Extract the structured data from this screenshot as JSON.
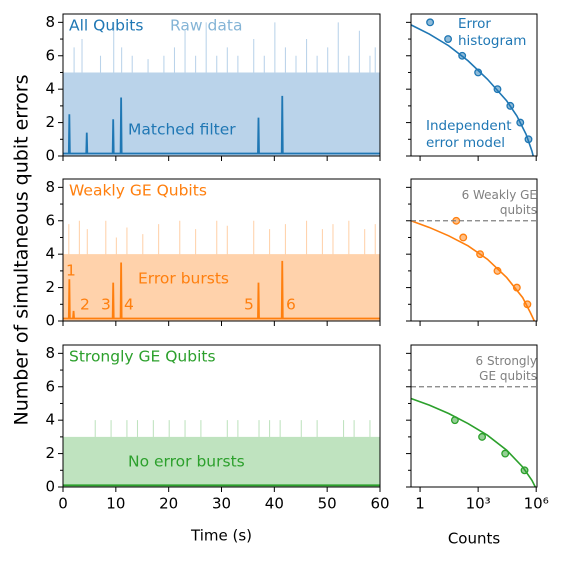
{
  "figure": {
    "ylabel": "Number of simultaneous qubit errors"
  },
  "chart_data": [
    {
      "type": "line",
      "title": "All Qubits",
      "xlim": [
        0,
        60
      ],
      "xticks": [
        0,
        10,
        20,
        30,
        40,
        50,
        60
      ],
      "ylim": [
        0,
        8.5
      ],
      "yticks": [
        0,
        2,
        4,
        6,
        8
      ],
      "yminor": [
        1,
        3,
        5,
        7
      ],
      "series": [
        {
          "name": "Raw data",
          "style": "step-area",
          "color": "#bad3ea",
          "x": [
            0,
            2,
            2.2,
            3.5,
            3.7,
            7,
            7.2,
            9.5,
            9.7,
            11,
            11.2,
            13,
            13.2,
            16,
            16.2,
            19,
            19.2,
            21,
            21.2,
            23,
            23.2,
            25,
            25.2,
            27,
            27.2,
            29,
            29.2,
            31,
            31.2,
            33,
            33.2,
            36,
            36.2,
            38,
            38.2,
            40,
            40.2,
            42,
            42.2,
            44,
            44.2,
            46,
            46.2,
            48,
            48.2,
            50,
            50.2,
            52,
            52.2,
            54,
            54.2,
            56,
            56.2,
            58,
            58.2,
            59,
            59.2,
            60
          ],
          "values": [
            5,
            6.5,
            5,
            7,
            5,
            6,
            5,
            8,
            5,
            6.5,
            5,
            6,
            5,
            5.8,
            5,
            6,
            5,
            6.5,
            5,
            7.5,
            5,
            6,
            5,
            8,
            5,
            6,
            5,
            6.5,
            5,
            6,
            5,
            7,
            5,
            6,
            5,
            8,
            5,
            6.5,
            5,
            6,
            5,
            7,
            5,
            6,
            5,
            6.5,
            5,
            8,
            5,
            6,
            5,
            7.5,
            5,
            6,
            5,
            6.5,
            5,
            5
          ]
        },
        {
          "name": "Matched filter",
          "style": "line",
          "color": "#1f77b4",
          "x": [
            0,
            1.1,
            1.2,
            1.3,
            4.4,
            4.5,
            4.6,
            9.4,
            9.5,
            9.6,
            10.9,
            11,
            11.1,
            36.9,
            37,
            37.1,
            41.4,
            41.5,
            41.6,
            60
          ],
          "values": [
            0.15,
            0.15,
            2.5,
            0.15,
            0.15,
            1.4,
            0.15,
            0.15,
            2.2,
            0.15,
            0.15,
            3.5,
            0.15,
            0.15,
            2.3,
            0.15,
            0.15,
            3.6,
            0.15,
            0.15
          ]
        }
      ],
      "annotations": []
    },
    {
      "type": "scatter",
      "xscale": "log",
      "xlim": [
        0.34,
        1100000
      ],
      "xticks": [
        1,
        {
          "value": 1000,
          "label": "10³"
        },
        {
          "value": 1000000,
          "label": "10⁶"
        }
      ],
      "ylim": [
        0,
        8.5
      ],
      "yticks": [
        0,
        2,
        4,
        6,
        8
      ],
      "yminor": [
        1,
        3,
        5,
        7
      ],
      "series": [
        {
          "name": "Error histogram",
          "style": "points",
          "color": "#1f77b4",
          "x": [
            3.3,
            28,
            150,
            1000,
            10000,
            46000,
            150000,
            400000
          ],
          "values": [
            8,
            7,
            6,
            5,
            4,
            3,
            2,
            1
          ]
        },
        {
          "name": "Independent error model",
          "style": "line",
          "color": "#1f77b4",
          "x": [
            0.34,
            3,
            30,
            300,
            3000,
            30000,
            100000,
            300000,
            600000,
            700000
          ],
          "values": [
            7.85,
            7.3,
            6.6,
            5.7,
            4.6,
            3.3,
            2.4,
            1.3,
            0.3,
            0
          ]
        }
      ]
    },
    {
      "type": "line",
      "title": "Weakly GE Qubits",
      "xlim": [
        0,
        60
      ],
      "xticks": [
        0,
        10,
        20,
        30,
        40,
        50,
        60
      ],
      "ylim": [
        0,
        8.5
      ],
      "yticks": [
        0,
        2,
        4,
        6,
        8
      ],
      "yminor": [
        1,
        3,
        5,
        7
      ],
      "series": [
        {
          "style": "step-area",
          "color": "#ffd2ab",
          "x": [
            0,
            1,
            1.2,
            3,
            3.2,
            4.5,
            4.7,
            8,
            8.2,
            10,
            10.2,
            12,
            12.2,
            15,
            15.2,
            18,
            18.2,
            22,
            22.2,
            25,
            25.2,
            29,
            29.2,
            31,
            31.2,
            36,
            36.2,
            39,
            39.2,
            42,
            42.2,
            46,
            46.2,
            49,
            49.2,
            51,
            51.2,
            54,
            54.2,
            57,
            57.2,
            59,
            59.2,
            60
          ],
          "values": [
            4,
            5.8,
            4,
            6,
            4,
            5.5,
            4,
            6,
            4,
            5,
            4,
            5.6,
            4,
            5.2,
            4,
            5.8,
            4,
            6,
            4,
            5.5,
            4,
            6,
            4,
            5.7,
            4,
            6,
            4,
            5.5,
            4,
            5.8,
            4,
            6,
            4,
            5.5,
            4,
            5.8,
            4,
            6,
            4,
            5.5,
            4,
            5.8,
            4,
            4
          ]
        },
        {
          "style": "line",
          "color": "#ff7f0e",
          "x": [
            0,
            1.1,
            1.2,
            1.3,
            1.9,
            2,
            2.1,
            9.4,
            9.5,
            9.6,
            10.9,
            11,
            11.1,
            36.9,
            37,
            37.1,
            41.4,
            41.5,
            41.6,
            60
          ],
          "values": [
            0.15,
            0.15,
            2.5,
            0.15,
            0.15,
            0.6,
            0.15,
            0.15,
            2.3,
            0.15,
            0.15,
            3.5,
            0.15,
            0.15,
            2.3,
            0.15,
            0.15,
            3.6,
            0.15,
            0.15
          ]
        }
      ],
      "annotations": [
        "1",
        "2",
        "3",
        "4",
        "5",
        "6",
        "Error bursts"
      ]
    },
    {
      "type": "scatter",
      "xscale": "log",
      "xlim": [
        0.34,
        1100000
      ],
      "xticks": [
        1,
        {
          "value": 1000,
          "label": "10³"
        },
        {
          "value": 1000000,
          "label": "10⁶"
        }
      ],
      "ylim": [
        0,
        8.5
      ],
      "yticks": [
        0,
        2,
        4,
        6,
        8
      ],
      "yminor": [
        1,
        3,
        5,
        7
      ],
      "hline": {
        "value": 6,
        "label": "6 Weakly GE qubits"
      },
      "series": [
        {
          "style": "points",
          "color": "#ff7f0e",
          "x": [
            74,
            170,
            1260,
            10000,
            100000,
            350000
          ],
          "values": [
            6,
            5,
            4,
            3,
            2,
            1
          ]
        },
        {
          "style": "line",
          "color": "#ff7f0e",
          "x": [
            0.34,
            3,
            30,
            300,
            3000,
            30000,
            200000,
            500000,
            800000
          ],
          "values": [
            6,
            5.6,
            5.1,
            4.5,
            3.7,
            2.6,
            1.4,
            0.5,
            0
          ]
        }
      ]
    },
    {
      "type": "line",
      "title": "Strongly GE Qubits",
      "xlabel": "Time (s)",
      "xlim": [
        0,
        60
      ],
      "xticks": [
        0,
        10,
        20,
        30,
        40,
        50,
        60
      ],
      "ylim": [
        0,
        8.5
      ],
      "yticks": [
        0,
        2,
        4,
        6,
        8
      ],
      "yminor": [
        1,
        3,
        5,
        7
      ],
      "series": [
        {
          "style": "step-area",
          "color": "#bfe3bf",
          "x": [
            0,
            6,
            6.2,
            9,
            9.2,
            12,
            12.2,
            14,
            14.2,
            17,
            17.2,
            20,
            20.2,
            23,
            23.2,
            26,
            26.2,
            31,
            31.2,
            33,
            33.2,
            37,
            37.2,
            39,
            39.2,
            41,
            41.2,
            45,
            45.2,
            48,
            48.2,
            53,
            53.2,
            55,
            55.2,
            58,
            58.2,
            60
          ],
          "values": [
            3,
            4,
            3,
            4,
            3,
            4,
            3,
            4,
            3,
            4,
            3,
            4,
            3,
            4,
            3,
            4,
            3,
            4,
            3,
            4,
            3,
            4,
            3,
            4,
            3,
            4,
            3,
            4,
            3,
            4,
            3,
            4,
            3,
            4,
            3,
            4,
            3,
            3
          ]
        },
        {
          "style": "line",
          "color": "#2ca02c",
          "x": [
            0,
            60
          ],
          "values": [
            0.1,
            0.1
          ]
        }
      ],
      "annotations": [
        "No error bursts"
      ]
    },
    {
      "type": "scatter",
      "xscale": "log",
      "xlabel": "Counts",
      "xlim": [
        0.34,
        1100000
      ],
      "xticks": [
        1,
        {
          "value": 1000,
          "label": "10³"
        },
        {
          "value": 1000000,
          "label": "10⁶"
        }
      ],
      "ylim": [
        0,
        8.5
      ],
      "yticks": [
        0,
        2,
        4,
        6,
        8
      ],
      "yminor": [
        1,
        3,
        5,
        7
      ],
      "hline": {
        "value": 6,
        "label": "6 Strongly GE qubits"
      },
      "series": [
        {
          "style": "points",
          "color": "#2ca02c",
          "x": [
            63,
            1600,
            25000,
            250000
          ],
          "values": [
            4,
            3,
            2,
            1
          ]
        },
        {
          "style": "line",
          "color": "#2ca02c",
          "x": [
            0.34,
            3,
            30,
            300,
            3000,
            30000,
            200000,
            600000,
            900000
          ],
          "values": [
            5.3,
            4.9,
            4.4,
            3.8,
            3.1,
            2.2,
            1.2,
            0.4,
            0
          ]
        }
      ]
    }
  ]
}
